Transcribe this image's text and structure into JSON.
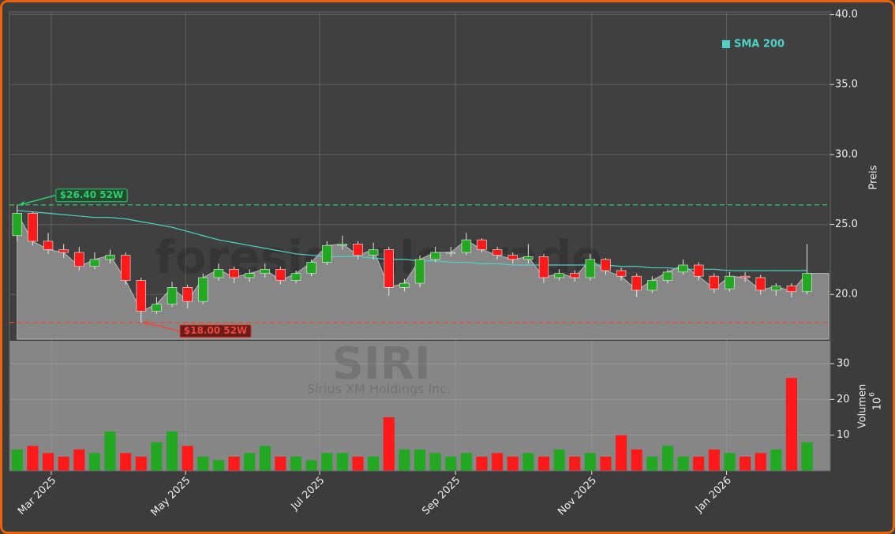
{
  "chart_data": {
    "type": "candlestick",
    "watermark": "foresignale.trade",
    "symbol": "SIRI",
    "company": "Sirius XM Holdings Inc.",
    "x": [
      0,
      1,
      2,
      3,
      4,
      5,
      6,
      7,
      8,
      9,
      10,
      11,
      12,
      13,
      14,
      15,
      16,
      17,
      18,
      19,
      20,
      21,
      22,
      23,
      24,
      25,
      26,
      27,
      28,
      29,
      30,
      31,
      32,
      33,
      34,
      35,
      36,
      37,
      38,
      39,
      40,
      41,
      42,
      43,
      44,
      45,
      46,
      47,
      48,
      49,
      50,
      51
    ],
    "open": [
      24.2,
      25.8,
      23.8,
      23.2,
      23.0,
      22.0,
      22.5,
      22.8,
      21.0,
      18.8,
      19.3,
      20.5,
      19.5,
      21.2,
      21.8,
      21.2,
      21.5,
      21.8,
      21.0,
      21.5,
      22.3,
      23.5,
      23.6,
      22.8,
      23.2,
      20.5,
      20.8,
      22.5,
      23.0,
      23.0,
      23.9,
      23.2,
      22.8,
      22.5,
      22.7,
      21.2,
      21.5,
      21.2,
      22.5,
      21.7,
      21.3,
      20.3,
      21.0,
      21.6,
      22.1,
      21.3,
      20.4,
      21.3,
      21.2,
      20.3,
      20.6,
      20.2
    ],
    "high": [
      26.4,
      25.9,
      24.4,
      23.6,
      23.4,
      23.0,
      23.2,
      23.0,
      21.2,
      19.8,
      20.9,
      20.7,
      21.5,
      22.2,
      22.0,
      21.8,
      22.2,
      22.0,
      21.7,
      22.5,
      23.8,
      24.2,
      23.8,
      23.7,
      23.4,
      21.1,
      22.8,
      23.4,
      23.4,
      24.4,
      24.0,
      23.4,
      23.0,
      23.6,
      22.9,
      21.8,
      21.7,
      22.9,
      22.6,
      21.9,
      21.5,
      21.3,
      21.8,
      22.5,
      22.3,
      21.5,
      21.6,
      21.6,
      21.4,
      20.8,
      20.8,
      23.6
    ],
    "low": [
      23.8,
      23.5,
      22.9,
      22.6,
      21.7,
      21.8,
      22.2,
      20.7,
      18.0,
      18.6,
      19.1,
      19.0,
      19.3,
      21.0,
      20.8,
      20.9,
      21.2,
      20.7,
      20.8,
      21.3,
      22.1,
      23.2,
      22.5,
      22.5,
      19.9,
      20.2,
      20.5,
      22.3,
      22.7,
      22.8,
      23.0,
      22.5,
      22.2,
      22.2,
      20.8,
      21.0,
      20.9,
      21.0,
      21.4,
      21.0,
      19.8,
      20.1,
      20.8,
      21.4,
      21.0,
      20.1,
      20.2,
      20.9,
      20.0,
      19.9,
      19.8,
      20.0
    ],
    "close": [
      25.8,
      23.8,
      23.2,
      23.0,
      22.0,
      22.5,
      22.8,
      21.0,
      18.8,
      19.3,
      20.5,
      19.5,
      21.2,
      21.8,
      21.2,
      21.5,
      21.8,
      21.0,
      21.5,
      22.3,
      23.5,
      23.6,
      22.8,
      23.2,
      20.5,
      20.8,
      22.5,
      23.0,
      23.0,
      23.9,
      23.2,
      22.8,
      22.5,
      22.7,
      21.2,
      21.5,
      21.2,
      22.5,
      21.7,
      21.3,
      20.3,
      21.0,
      21.6,
      22.1,
      21.3,
      20.4,
      21.3,
      21.2,
      20.3,
      20.6,
      20.2,
      21.5
    ],
    "volume": [
      6,
      7,
      5,
      4,
      6,
      5,
      11,
      5,
      4,
      8,
      11,
      7,
      4,
      3,
      4,
      5,
      7,
      4,
      4,
      3,
      5,
      5,
      4,
      4,
      15,
      6,
      6,
      5,
      4,
      5,
      4,
      5,
      4,
      5,
      4,
      6,
      4,
      5,
      4,
      10,
      6,
      4,
      7,
      4,
      4,
      6,
      5,
      4,
      5,
      6,
      26,
      8
    ],
    "sma": {
      "name": "SMA 200",
      "color": "#4fd1c5",
      "values": [
        26.0,
        25.9,
        25.8,
        25.7,
        25.6,
        25.5,
        25.5,
        25.4,
        25.2,
        25.0,
        24.8,
        24.5,
        24.2,
        23.9,
        23.7,
        23.5,
        23.3,
        23.1,
        22.9,
        22.8,
        22.7,
        22.7,
        22.7,
        22.6,
        22.5,
        22.5,
        22.4,
        22.4,
        22.3,
        22.3,
        22.2,
        22.2,
        22.1,
        22.1,
        22.1,
        22.1,
        22.1,
        22.1,
        22.1,
        22.0,
        22.0,
        21.9,
        21.9,
        21.8,
        21.8,
        21.8,
        21.7,
        21.7,
        21.7,
        21.7,
        21.7,
        21.7
      ]
    },
    "up_color": "#22a822",
    "down_color": "#ff1a1a",
    "area_color": "#878787",
    "annotations": [
      {
        "value": 26.4,
        "label": "$26.40 52W",
        "color": "#2ecc71"
      },
      {
        "value": 18.0,
        "label": "$18.00 52W",
        "color": "#e74c3c"
      }
    ],
    "xlim": [
      -0.5,
      52.5
    ],
    "xticks": [
      {
        "value": 2.2,
        "label": "Mar 2025"
      },
      {
        "value": 10.87,
        "label": "May 2025"
      },
      {
        "value": 19.53,
        "label": "Jul 2025"
      },
      {
        "value": 28.3,
        "label": "Sep 2025"
      },
      {
        "value": 37.1,
        "label": "Nov 2025"
      },
      {
        "value": 45.8,
        "label": "Jan 2026"
      }
    ],
    "ylim": [
      16.8,
      40.2
    ],
    "yticks": [
      {
        "value": 20,
        "label": "20.0"
      },
      {
        "value": 25,
        "label": "25.0"
      },
      {
        "value": 30,
        "label": "30.0"
      },
      {
        "value": 35,
        "label": "35.0"
      },
      {
        "value": 40,
        "label": "40.0"
      }
    ],
    "y_label": "Preis",
    "y2lim": [
      0,
      36.4
    ],
    "y2ticks": [
      10,
      20,
      30
    ],
    "volume_label": "Volumen",
    "volume_unit": "10",
    "volume_unit_exp": "6",
    "grid": true
  }
}
